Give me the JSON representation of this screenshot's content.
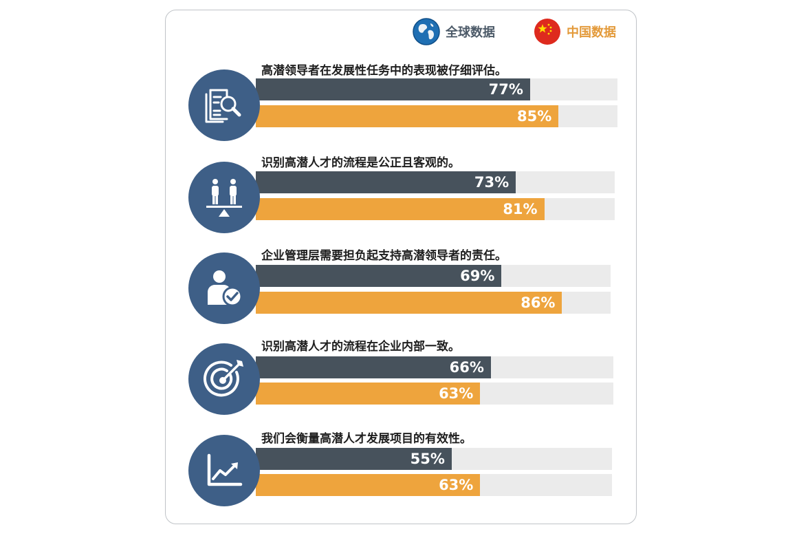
{
  "legend": {
    "global_label": "全球数据",
    "china_label": "中国数据"
  },
  "colors": {
    "global": "#47525c",
    "china": "#eea43d",
    "track": "#ebebeb",
    "icon_circle": "#3e5f87"
  },
  "chart_data": {
    "type": "bar",
    "orientation": "horizontal",
    "xlim": [
      0,
      100
    ],
    "unit": "%",
    "series": [
      {
        "name": "全球数据",
        "values": [
          77,
          73,
          69,
          66,
          55
        ]
      },
      {
        "name": "中国数据",
        "values": [
          85,
          81,
          86,
          63,
          63
        ]
      }
    ],
    "categories": [
      {
        "title": "高潜领导者在发展性任务中的表现被仔细评估。",
        "icon": "document-search-icon",
        "global": "77%",
        "china": "85%"
      },
      {
        "title": "识别高潜人才的流程是公正且客观的。",
        "icon": "balance-people-icon",
        "global": "73%",
        "china": "81%"
      },
      {
        "title": "企业管理层需要担负起支持高潜领导者的责任。",
        "icon": "person-check-icon",
        "global": "69%",
        "china": "86%"
      },
      {
        "title": "识别高潜人才的流程在企业内部一致。",
        "icon": "target-icon",
        "global": "66%",
        "china": "63%"
      },
      {
        "title": "我们会衡量高潜人才发展项目的有效性。",
        "icon": "growth-chart-icon",
        "global": "55%",
        "china": "63%"
      }
    ]
  }
}
